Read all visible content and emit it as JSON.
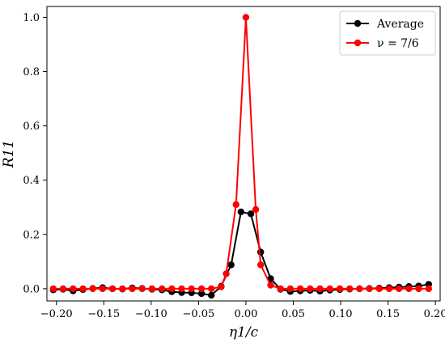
{
  "chart_data": {
    "type": "line",
    "xlabel": "η1/c",
    "ylabel": "R11",
    "xlim": [
      -0.21,
      0.205
    ],
    "ylim": [
      -0.045,
      1.04
    ],
    "xticks": [
      -0.2,
      -0.15,
      -0.1,
      -0.05,
      0.0,
      0.05,
      0.1,
      0.15,
      0.2
    ],
    "xtick_labels": [
      "−0.20",
      "−0.15",
      "−0.10",
      "−0.05",
      "0.00",
      "0.05",
      "0.10",
      "0.15",
      "0.20"
    ],
    "yticks": [
      0.0,
      0.2,
      0.4,
      0.6,
      0.8,
      1.0
    ],
    "ytick_labels": [
      "0.0",
      "0.2",
      "0.4",
      "0.6",
      "0.8",
      "1.0"
    ],
    "grid": false,
    "legend_position": "top-right",
    "series": [
      {
        "name": "Average",
        "color": "#000000",
        "marker": "circle",
        "x": [
          -0.2033,
          -0.1929,
          -0.1824,
          -0.172,
          -0.1616,
          -0.1512,
          -0.1408,
          -0.1303,
          -0.1199,
          -0.1095,
          -0.0991,
          -0.0886,
          -0.0782,
          -0.0678,
          -0.0574,
          -0.0469,
          -0.0365,
          -0.0261,
          -0.0156,
          -0.0052,
          0.0052,
          0.0156,
          0.0261,
          0.0365,
          0.0469,
          0.0574,
          0.0678,
          0.0782,
          0.0886,
          0.0991,
          0.1095,
          0.1199,
          0.1303,
          0.1408,
          0.1512,
          0.1616,
          0.172,
          0.1824,
          0.1929
        ],
        "y": [
          -0.004,
          -0.002,
          -0.008,
          -0.003,
          0.001,
          0.004,
          0.0,
          -0.001,
          0.003,
          0.001,
          -0.002,
          -0.004,
          -0.011,
          -0.014,
          -0.015,
          -0.018,
          -0.024,
          0.009,
          0.088,
          0.283,
          0.276,
          0.135,
          0.037,
          -0.002,
          -0.01,
          -0.008,
          -0.006,
          -0.009,
          -0.005,
          -0.003,
          -0.001,
          0.0,
          0.001,
          0.002,
          0.004,
          0.006,
          0.008,
          0.01,
          0.016
        ]
      },
      {
        "name": "ν = 7/6",
        "color": "#ff0000",
        "marker": "circle",
        "x": [
          -0.2033,
          -0.1929,
          -0.1824,
          -0.172,
          -0.1616,
          -0.1512,
          -0.1408,
          -0.1303,
          -0.1199,
          -0.1095,
          -0.0991,
          -0.0886,
          -0.0782,
          -0.0678,
          -0.0574,
          -0.0469,
          -0.0365,
          -0.0261,
          -0.0208,
          -0.0104,
          0.0,
          0.0104,
          0.0156,
          0.0261,
          0.0365,
          0.0469,
          0.0574,
          0.0678,
          0.0782,
          0.0886,
          0.0991,
          0.1095,
          0.1199,
          0.1303,
          0.1408,
          0.1512,
          0.1616,
          0.172,
          0.1824,
          0.1929
        ],
        "y": [
          0.0,
          0.0,
          0.0,
          0.0,
          0.0,
          0.0,
          0.0,
          0.0,
          0.0,
          0.0,
          0.0,
          0.0,
          0.0,
          0.0,
          0.0,
          0.0,
          0.0,
          0.007,
          0.055,
          0.31,
          1.0,
          0.292,
          0.088,
          0.013,
          0.0,
          0.0,
          0.0,
          0.0,
          0.0,
          0.0,
          0.0,
          0.0,
          0.0,
          0.0,
          0.0,
          0.0,
          0.0,
          0.0,
          0.0,
          0.0
        ]
      }
    ]
  }
}
